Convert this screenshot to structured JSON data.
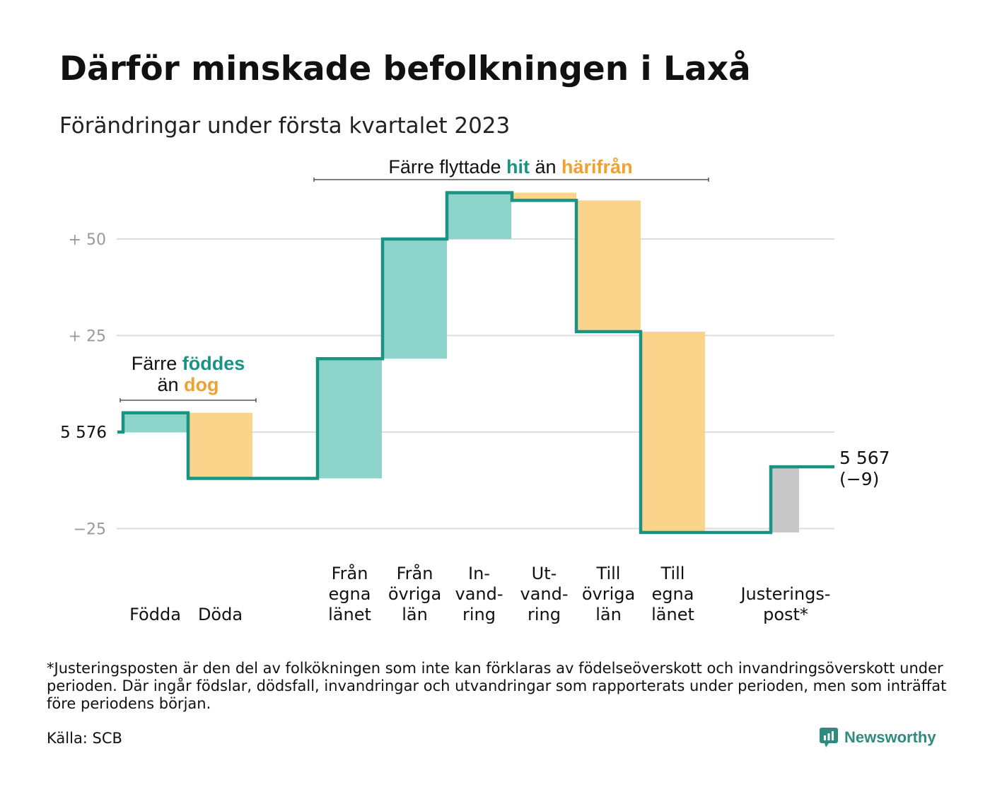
{
  "title": "Därför minskade befolkningen i Laxå",
  "subtitle": "Förändringar under första kvartalet 2023",
  "footnote": "*Justeringsposten är den del av folkökningen som inte kan förklaras av födelseöverskott och invandringsöverskott under perioden. Där ingår födslar, dödsfall, invandringar och utvandringar som rapporterats under perioden, men som inträffat före periodens början.",
  "source": "Källa: SCB",
  "logo": {
    "text": "Newsworthy",
    "icon": "newsworthy-logo-icon"
  },
  "colors": {
    "increase": "#8dd5cb",
    "decrease": "#fad48a",
    "adjustment": "#c8c8c8",
    "line": "#1b9384",
    "highlight_green": "#1b9384",
    "highlight_orange": "#f0a030",
    "grid": "#dddddd",
    "tick": "#999999"
  },
  "chart_data": {
    "type": "waterfall",
    "start_value": 5576,
    "end_value": 5567,
    "start_label": "5 576",
    "end_label": [
      "5 567",
      "(−9)"
    ],
    "y_axis": {
      "relative_to_start": true,
      "ylim": [
        -28,
        64
      ],
      "ticks": [
        {
          "value": 50,
          "label": "+ 50"
        },
        {
          "value": 25,
          "label": "+ 25"
        },
        {
          "value": 0,
          "label": "5 576"
        },
        {
          "value": -25,
          "label": "−25"
        }
      ],
      "grid": true
    },
    "x_labels": [
      {
        "key": "fodda",
        "lines": [
          "Födda"
        ]
      },
      {
        "key": "doda",
        "lines": [
          "Döda"
        ]
      },
      {
        "key": "fran_egna",
        "lines": [
          "Från",
          "egna",
          "länet"
        ]
      },
      {
        "key": "fran_ovriga",
        "lines": [
          "Från",
          "övriga",
          "län"
        ]
      },
      {
        "key": "invandring",
        "lines": [
          "In-",
          "vand-",
          "ring"
        ]
      },
      {
        "key": "utvandring",
        "lines": [
          "Ut-",
          "vand-",
          "ring"
        ]
      },
      {
        "key": "till_ovriga",
        "lines": [
          "Till",
          "övriga",
          "län"
        ]
      },
      {
        "key": "till_egna",
        "lines": [
          "Till",
          "egna",
          "länet"
        ]
      },
      {
        "key": "justering",
        "lines": [
          "Justerings-",
          "post*"
        ]
      }
    ],
    "steps": [
      {
        "key": "fodda",
        "change": 5,
        "kind": "increase"
      },
      {
        "key": "doda",
        "change": -17,
        "kind": "decrease"
      },
      {
        "key": "fran_egna",
        "change": 31,
        "kind": "increase"
      },
      {
        "key": "fran_ovriga",
        "change": 31,
        "kind": "increase"
      },
      {
        "key": "invandring",
        "change": 12,
        "kind": "increase"
      },
      {
        "key": "utvandring",
        "change": -2,
        "kind": "decrease"
      },
      {
        "key": "till_ovriga",
        "change": -34,
        "kind": "decrease"
      },
      {
        "key": "till_egna",
        "change": -52,
        "kind": "decrease"
      },
      {
        "key": "justering",
        "change": 17,
        "kind": "adjustment"
      }
    ],
    "annotations": [
      {
        "key": "births",
        "lines": [
          [
            {
              "text": "Färre ",
              "style": "normal"
            },
            {
              "text": "föddes",
              "style": "green"
            }
          ],
          [
            {
              "text": "än ",
              "style": "normal"
            },
            {
              "text": "dog",
              "style": "orange"
            }
          ]
        ]
      },
      {
        "key": "moves",
        "lines": [
          [
            {
              "text": "Färre flyttade ",
              "style": "normal"
            },
            {
              "text": "hit",
              "style": "green"
            },
            {
              "text": " än ",
              "style": "normal"
            },
            {
              "text": "härifrån",
              "style": "orange"
            }
          ]
        ]
      }
    ]
  }
}
